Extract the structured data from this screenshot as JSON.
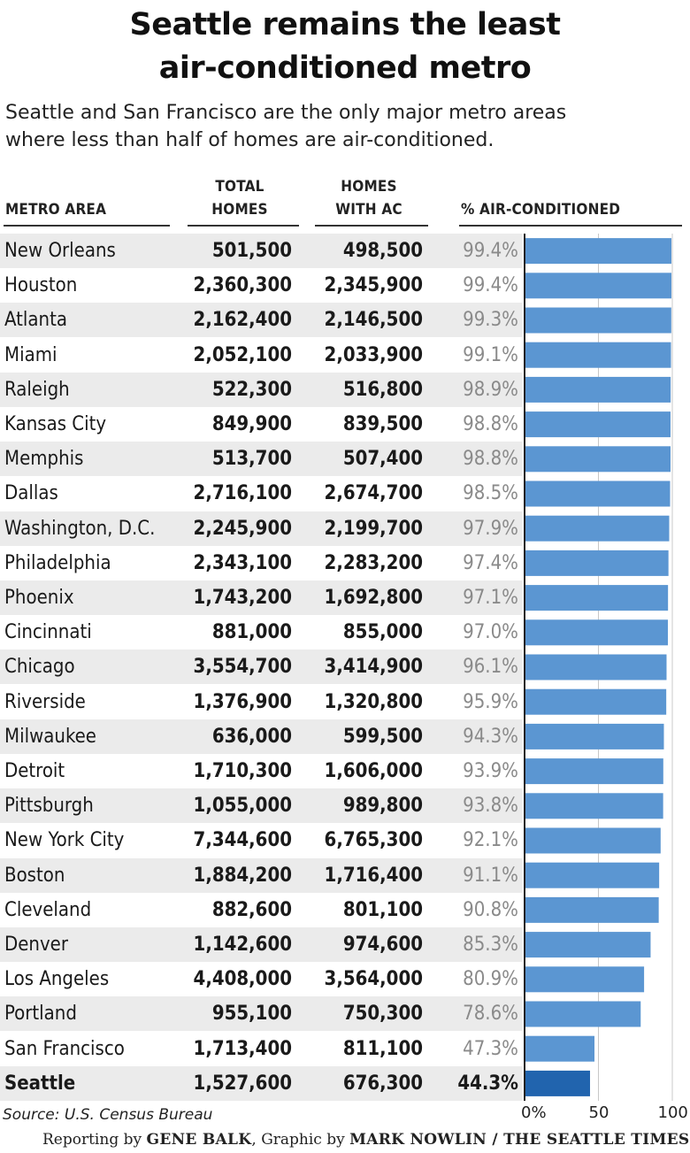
{
  "title_line1": "Seattle remains the least",
  "title_line2": "air-conditioned metro",
  "subtitle_line1": "Seattle and San Francisco are the only major metro areas",
  "subtitle_line2": "where less than half of homes are air-conditioned.",
  "headers": {
    "metro": "METRO AREA",
    "total_line1": "TOTAL",
    "total_line2": "HOMES",
    "ac_line1": "HOMES",
    "ac_line2": "WITH AC",
    "pct": "% AIR-CONDITIONED"
  },
  "colors": {
    "bar": "#5b96d2",
    "bar_highlight": "#2164ae",
    "stripe": "#ebebeb"
  },
  "chart_data": {
    "type": "bar",
    "categories": [
      "New Orleans",
      "Houston",
      "Atlanta",
      "Miami",
      "Raleigh",
      "Kansas City",
      "Memphis",
      "Dallas",
      "Washington, D.C.",
      "Philadelphia",
      "Phoenix",
      "Cincinnati",
      "Chicago",
      "Riverside",
      "Milwaukee",
      "Detroit",
      "Pittsburgh",
      "New York City",
      "Boston",
      "Cleveland",
      "Denver",
      "Los Angeles",
      "Portland",
      "San Francisco",
      "Seattle"
    ],
    "rows": [
      {
        "name": "New Orleans",
        "total": "501,500",
        "ac": "498,500",
        "pct": "99.4%",
        "value": 99.4
      },
      {
        "name": "Houston",
        "total": "2,360,300",
        "ac": "2,345,900",
        "pct": "99.4%",
        "value": 99.4
      },
      {
        "name": "Atlanta",
        "total": "2,162,400",
        "ac": "2,146,500",
        "pct": "99.3%",
        "value": 99.3
      },
      {
        "name": "Miami",
        "total": "2,052,100",
        "ac": "2,033,900",
        "pct": "99.1%",
        "value": 99.1
      },
      {
        "name": "Raleigh",
        "total": "522,300",
        "ac": "516,800",
        "pct": "98.9%",
        "value": 98.9
      },
      {
        "name": "Kansas City",
        "total": "849,900",
        "ac": "839,500",
        "pct": "98.8%",
        "value": 98.8
      },
      {
        "name": "Memphis",
        "total": "513,700",
        "ac": "507,400",
        "pct": "98.8%",
        "value": 98.8
      },
      {
        "name": "Dallas",
        "total": "2,716,100",
        "ac": "2,674,700",
        "pct": "98.5%",
        "value": 98.5
      },
      {
        "name": "Washington, D.C.",
        "total": "2,245,900",
        "ac": "2,199,700",
        "pct": "97.9%",
        "value": 97.9
      },
      {
        "name": "Philadelphia",
        "total": "2,343,100",
        "ac": "2,283,200",
        "pct": "97.4%",
        "value": 97.4
      },
      {
        "name": "Phoenix",
        "total": "1,743,200",
        "ac": "1,692,800",
        "pct": "97.1%",
        "value": 97.1
      },
      {
        "name": "Cincinnati",
        "total": "881,000",
        "ac": "855,000",
        "pct": "97.0%",
        "value": 97.0
      },
      {
        "name": "Chicago",
        "total": "3,554,700",
        "ac": "3,414,900",
        "pct": "96.1%",
        "value": 96.1
      },
      {
        "name": "Riverside",
        "total": "1,376,900",
        "ac": "1,320,800",
        "pct": "95.9%",
        "value": 95.9
      },
      {
        "name": "Milwaukee",
        "total": "636,000",
        "ac": "599,500",
        "pct": "94.3%",
        "value": 94.3
      },
      {
        "name": "Detroit",
        "total": "1,710,300",
        "ac": "1,606,000",
        "pct": "93.9%",
        "value": 93.9
      },
      {
        "name": "Pittsburgh",
        "total": "1,055,000",
        "ac": "989,800",
        "pct": "93.8%",
        "value": 93.8
      },
      {
        "name": "New York City",
        "total": "7,344,600",
        "ac": "6,765,300",
        "pct": "92.1%",
        "value": 92.1
      },
      {
        "name": "Boston",
        "total": "1,884,200",
        "ac": "1,716,400",
        "pct": "91.1%",
        "value": 91.1
      },
      {
        "name": "Cleveland",
        "total": "882,600",
        "ac": "801,100",
        "pct": "90.8%",
        "value": 90.8
      },
      {
        "name": "Denver",
        "total": "1,142,600",
        "ac": "974,600",
        "pct": "85.3%",
        "value": 85.3
      },
      {
        "name": "Los Angeles",
        "total": "4,408,000",
        "ac": "3,564,000",
        "pct": "80.9%",
        "value": 80.9
      },
      {
        "name": "Portland",
        "total": "955,100",
        "ac": "750,300",
        "pct": "78.6%",
        "value": 78.6
      },
      {
        "name": "San Francisco",
        "total": "1,713,400",
        "ac": "811,100",
        "pct": "47.3%",
        "value": 47.3
      },
      {
        "name": "Seattle",
        "total": "1,527,600",
        "ac": "676,300",
        "pct": "44.3%",
        "value": 44.3,
        "highlight": true
      }
    ],
    "xlim": [
      0,
      100
    ],
    "ticks": [
      {
        "value": 0,
        "label": "0%"
      },
      {
        "value": 50,
        "label": "50"
      },
      {
        "value": 100,
        "label": "100"
      }
    ],
    "grid": true
  },
  "source": "Source: U.S. Census Bureau",
  "credit": {
    "prefix": "Reporting by ",
    "reporter": "GENE BALK",
    "middle": ", Graphic by ",
    "graphic": "MARK NOWLIN / THE SEATTLE TIMES"
  }
}
